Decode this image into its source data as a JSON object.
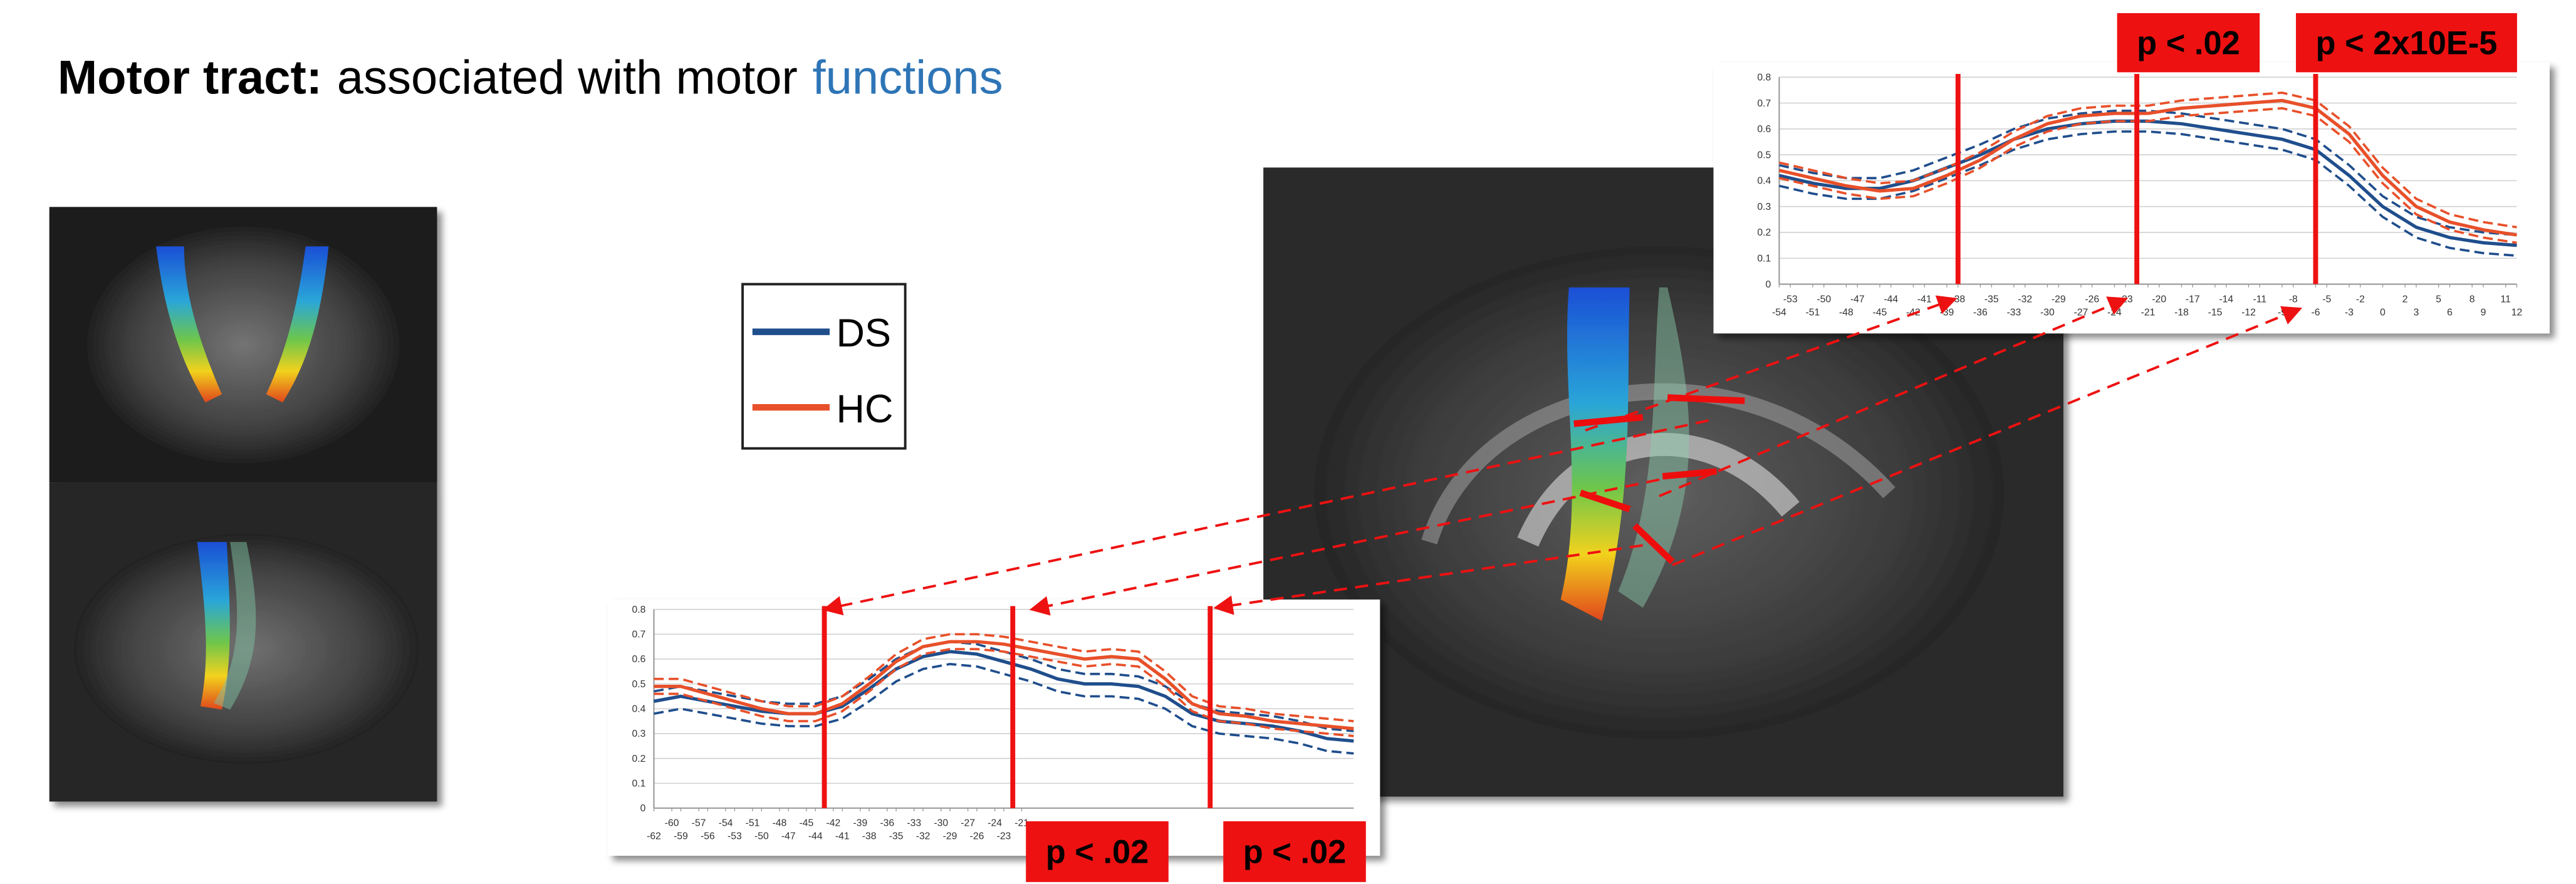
{
  "title": {
    "bold": "Motor tract:",
    "text": "associated with motor",
    "highlight": "functions"
  },
  "chart_data": [
    {
      "type": "line",
      "x": [
        -54,
        -51,
        -48,
        -45,
        -42,
        -39,
        -36,
        -33,
        -30,
        -27,
        -24,
        -21,
        -18,
        -15,
        -12,
        -9,
        -6,
        -3,
        0,
        3,
        6,
        9,
        12
      ],
      "series": [
        {
          "name": "DS",
          "color": "#1f4e8c",
          "values": [
            0.42,
            0.39,
            0.37,
            0.37,
            0.4,
            0.45,
            0.5,
            0.56,
            0.6,
            0.62,
            0.63,
            0.63,
            0.62,
            0.6,
            0.58,
            0.56,
            0.52,
            0.42,
            0.3,
            0.22,
            0.18,
            0.16,
            0.15
          ],
          "lower": [
            0.38,
            0.35,
            0.33,
            0.33,
            0.36,
            0.41,
            0.46,
            0.52,
            0.56,
            0.58,
            0.59,
            0.59,
            0.58,
            0.56,
            0.54,
            0.52,
            0.48,
            0.38,
            0.26,
            0.18,
            0.14,
            0.12,
            0.11
          ],
          "upper": [
            0.46,
            0.43,
            0.41,
            0.41,
            0.44,
            0.49,
            0.54,
            0.6,
            0.64,
            0.66,
            0.67,
            0.67,
            0.66,
            0.64,
            0.62,
            0.6,
            0.56,
            0.46,
            0.34,
            0.26,
            0.22,
            0.2,
            0.19
          ]
        },
        {
          "name": "HC",
          "color": "#e8502a",
          "values": [
            0.44,
            0.41,
            0.38,
            0.36,
            0.37,
            0.42,
            0.48,
            0.56,
            0.62,
            0.65,
            0.66,
            0.66,
            0.68,
            0.69,
            0.7,
            0.71,
            0.68,
            0.58,
            0.42,
            0.3,
            0.24,
            0.21,
            0.19
          ],
          "lower": [
            0.41,
            0.38,
            0.35,
            0.33,
            0.34,
            0.39,
            0.45,
            0.53,
            0.59,
            0.62,
            0.63,
            0.63,
            0.65,
            0.66,
            0.67,
            0.68,
            0.65,
            0.55,
            0.39,
            0.27,
            0.21,
            0.18,
            0.16
          ],
          "upper": [
            0.47,
            0.44,
            0.41,
            0.39,
            0.4,
            0.45,
            0.51,
            0.59,
            0.65,
            0.68,
            0.69,
            0.69,
            0.71,
            0.72,
            0.73,
            0.74,
            0.71,
            0.61,
            0.45,
            0.33,
            0.27,
            0.24,
            0.22
          ]
        }
      ],
      "xlim": [
        -54,
        12
      ],
      "ylim": [
        0,
        0.8
      ],
      "xticks": [
        -54,
        -53,
        -51,
        -50,
        -48,
        -47,
        -45,
        -44,
        -42,
        -41,
        -39,
        -38,
        -36,
        -35,
        -33,
        -32,
        -30,
        -29,
        -27,
        -26,
        -24,
        -23,
        -21,
        -20,
        -18,
        -17,
        -15,
        -14,
        -12,
        -11,
        -9,
        -8,
        -6,
        -5,
        -3,
        -2,
        0,
        2,
        3,
        5,
        6,
        8,
        9,
        11,
        12
      ],
      "yticks": [
        0,
        0.1,
        0.2,
        0.3,
        0.4,
        0.5,
        0.6,
        0.7,
        0.8
      ],
      "grid": true,
      "marker_color": "#ee1111",
      "markers": [
        {
          "x": -38
        },
        {
          "x": -22,
          "label": "p < .02"
        },
        {
          "x": -6,
          "label": "p < 2x10E-5"
        }
      ]
    },
    {
      "type": "line",
      "x": [
        -62,
        -59,
        -56,
        -53,
        -50,
        -47,
        -44,
        -41,
        -38,
        -35,
        -32,
        -29,
        -26,
        -23,
        -20,
        -17,
        -14,
        -11,
        -8,
        -5,
        -2,
        1,
        4,
        7,
        10,
        13,
        16
      ],
      "series": [
        {
          "name": "DS",
          "color": "#1f4e8c",
          "values": [
            0.43,
            0.45,
            0.43,
            0.41,
            0.39,
            0.38,
            0.38,
            0.41,
            0.48,
            0.56,
            0.61,
            0.63,
            0.62,
            0.59,
            0.56,
            0.52,
            0.5,
            0.5,
            0.49,
            0.45,
            0.38,
            0.35,
            0.34,
            0.33,
            0.31,
            0.28,
            0.27
          ],
          "lower": [
            0.38,
            0.4,
            0.38,
            0.36,
            0.34,
            0.33,
            0.33,
            0.36,
            0.43,
            0.51,
            0.56,
            0.58,
            0.57,
            0.54,
            0.51,
            0.47,
            0.45,
            0.45,
            0.44,
            0.4,
            0.33,
            0.3,
            0.29,
            0.28,
            0.26,
            0.23,
            0.22
          ],
          "upper": [
            0.47,
            0.49,
            0.47,
            0.45,
            0.43,
            0.42,
            0.42,
            0.45,
            0.52,
            0.6,
            0.65,
            0.67,
            0.66,
            0.63,
            0.6,
            0.56,
            0.54,
            0.54,
            0.53,
            0.49,
            0.42,
            0.39,
            0.38,
            0.37,
            0.35,
            0.32,
            0.31
          ]
        },
        {
          "name": "HC",
          "color": "#e8502a",
          "values": [
            0.49,
            0.49,
            0.46,
            0.43,
            0.4,
            0.38,
            0.38,
            0.42,
            0.5,
            0.59,
            0.65,
            0.67,
            0.67,
            0.66,
            0.64,
            0.62,
            0.6,
            0.61,
            0.6,
            0.52,
            0.42,
            0.38,
            0.37,
            0.35,
            0.34,
            0.33,
            0.32
          ],
          "lower": [
            0.46,
            0.46,
            0.43,
            0.4,
            0.37,
            0.35,
            0.35,
            0.39,
            0.47,
            0.56,
            0.62,
            0.64,
            0.64,
            0.63,
            0.61,
            0.59,
            0.57,
            0.58,
            0.57,
            0.49,
            0.39,
            0.35,
            0.34,
            0.32,
            0.31,
            0.3,
            0.29
          ],
          "upper": [
            0.52,
            0.52,
            0.49,
            0.46,
            0.43,
            0.41,
            0.41,
            0.45,
            0.53,
            0.62,
            0.68,
            0.7,
            0.7,
            0.69,
            0.67,
            0.65,
            0.63,
            0.64,
            0.63,
            0.55,
            0.45,
            0.41,
            0.4,
            0.38,
            0.37,
            0.36,
            0.35
          ]
        }
      ],
      "xlim": [
        -62,
        16
      ],
      "ylim": [
        0,
        0.8
      ],
      "xticks": [
        -62,
        -60,
        -59,
        -57,
        -56,
        -54,
        -53,
        -51,
        -50,
        -48,
        -47,
        -45,
        -44,
        -42,
        -41,
        -39,
        -38,
        -36,
        -35,
        -33,
        -32,
        -30,
        -29,
        -27,
        -26,
        -24,
        -23,
        -21
      ],
      "yticks": [
        0,
        0.1,
        0.2,
        0.3,
        0.4,
        0.5,
        0.6,
        0.7,
        0.8
      ],
      "grid": true,
      "marker_color": "#ee1111",
      "markers": [
        {
          "x": -43
        },
        {
          "x": -22,
          "label": "p < .02"
        },
        {
          "x": 0,
          "label": "p < .02"
        }
      ]
    }
  ]
}
